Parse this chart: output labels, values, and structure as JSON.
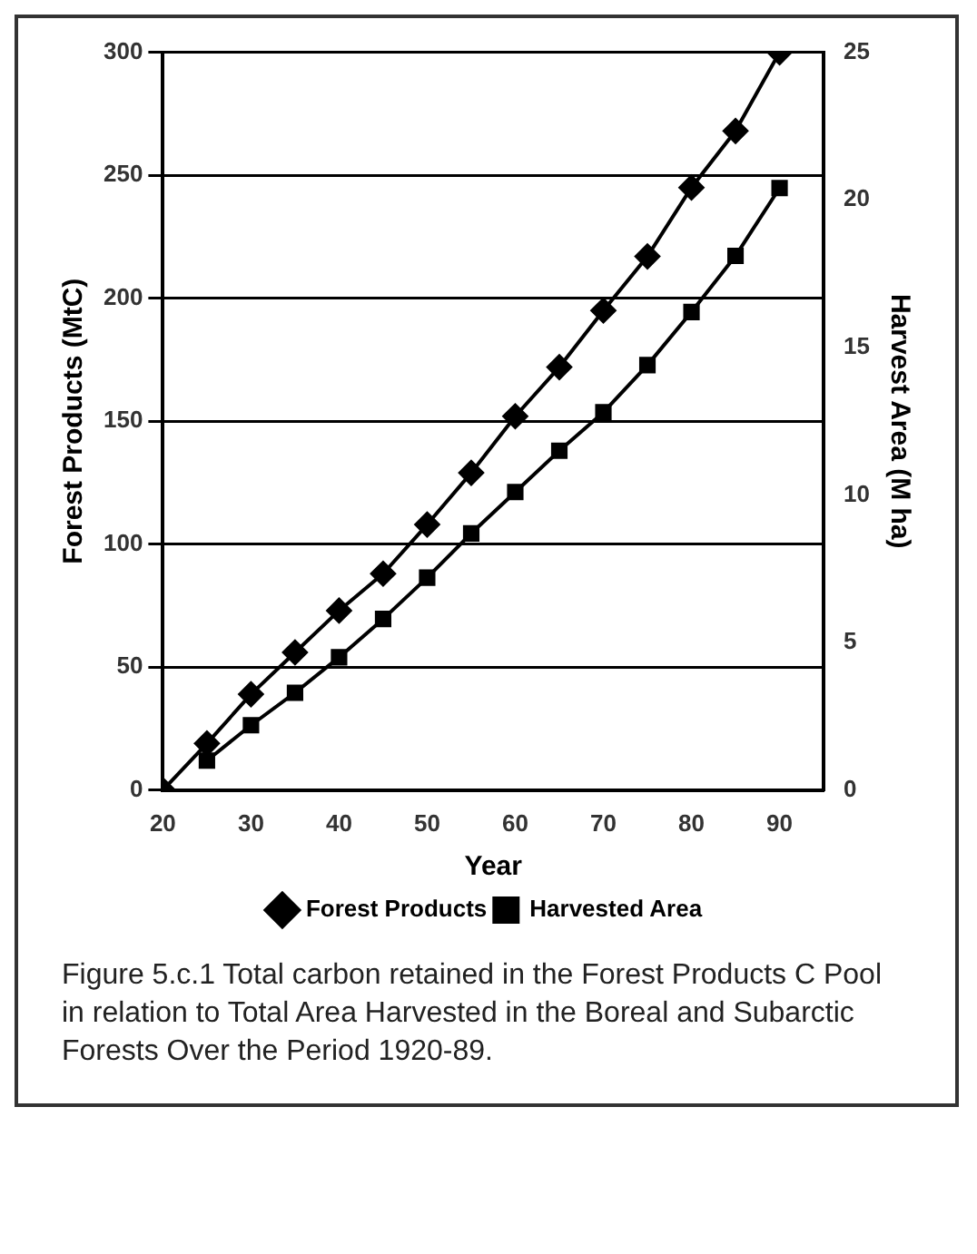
{
  "chart_data": {
    "type": "line",
    "xlabel": "Year",
    "ylabel": "Forest Products (MtC)",
    "y2label": "Harvest Area (M ha)",
    "xlim": [
      20,
      95
    ],
    "xticks": [
      20,
      30,
      40,
      50,
      60,
      70,
      80,
      90
    ],
    "ylim": [
      0,
      300
    ],
    "yticks": [
      0,
      50,
      100,
      150,
      200,
      250,
      300
    ],
    "y2lim": [
      0,
      25
    ],
    "y2ticks": [
      0,
      5,
      10,
      15,
      20,
      25
    ],
    "grid": "y",
    "legend": "bottom",
    "series": [
      {
        "name": "Forest Products",
        "color": "#000000",
        "marker": "diamond",
        "x": [
          20,
          25,
          30,
          35,
          40,
          45,
          50,
          55,
          60,
          65,
          70,
          75,
          80,
          85,
          90
        ],
        "values": [
          0,
          19,
          39,
          56,
          73,
          88,
          108,
          129,
          152,
          172,
          195,
          217,
          245,
          268,
          300
        ]
      },
      {
        "name": "Harvested Area",
        "color": "#000000",
        "marker": "square",
        "axis": "y2",
        "x": [
          25,
          30,
          35,
          40,
          45,
          50,
          55,
          60,
          65,
          70,
          75,
          80,
          85,
          90
        ],
        "values": [
          1.0,
          2.2,
          3.3,
          4.5,
          5.8,
          7.2,
          8.7,
          10.1,
          11.5,
          12.8,
          14.4,
          16.2,
          18.1,
          20.4
        ]
      }
    ],
    "annotations": [
      "Figure 5.c.1 Total carbon retained in the Forest Products C Pool in relation to Total Area Harvested in the Boreal and Subarctic Forests Over the Period 1920-89."
    ]
  }
}
